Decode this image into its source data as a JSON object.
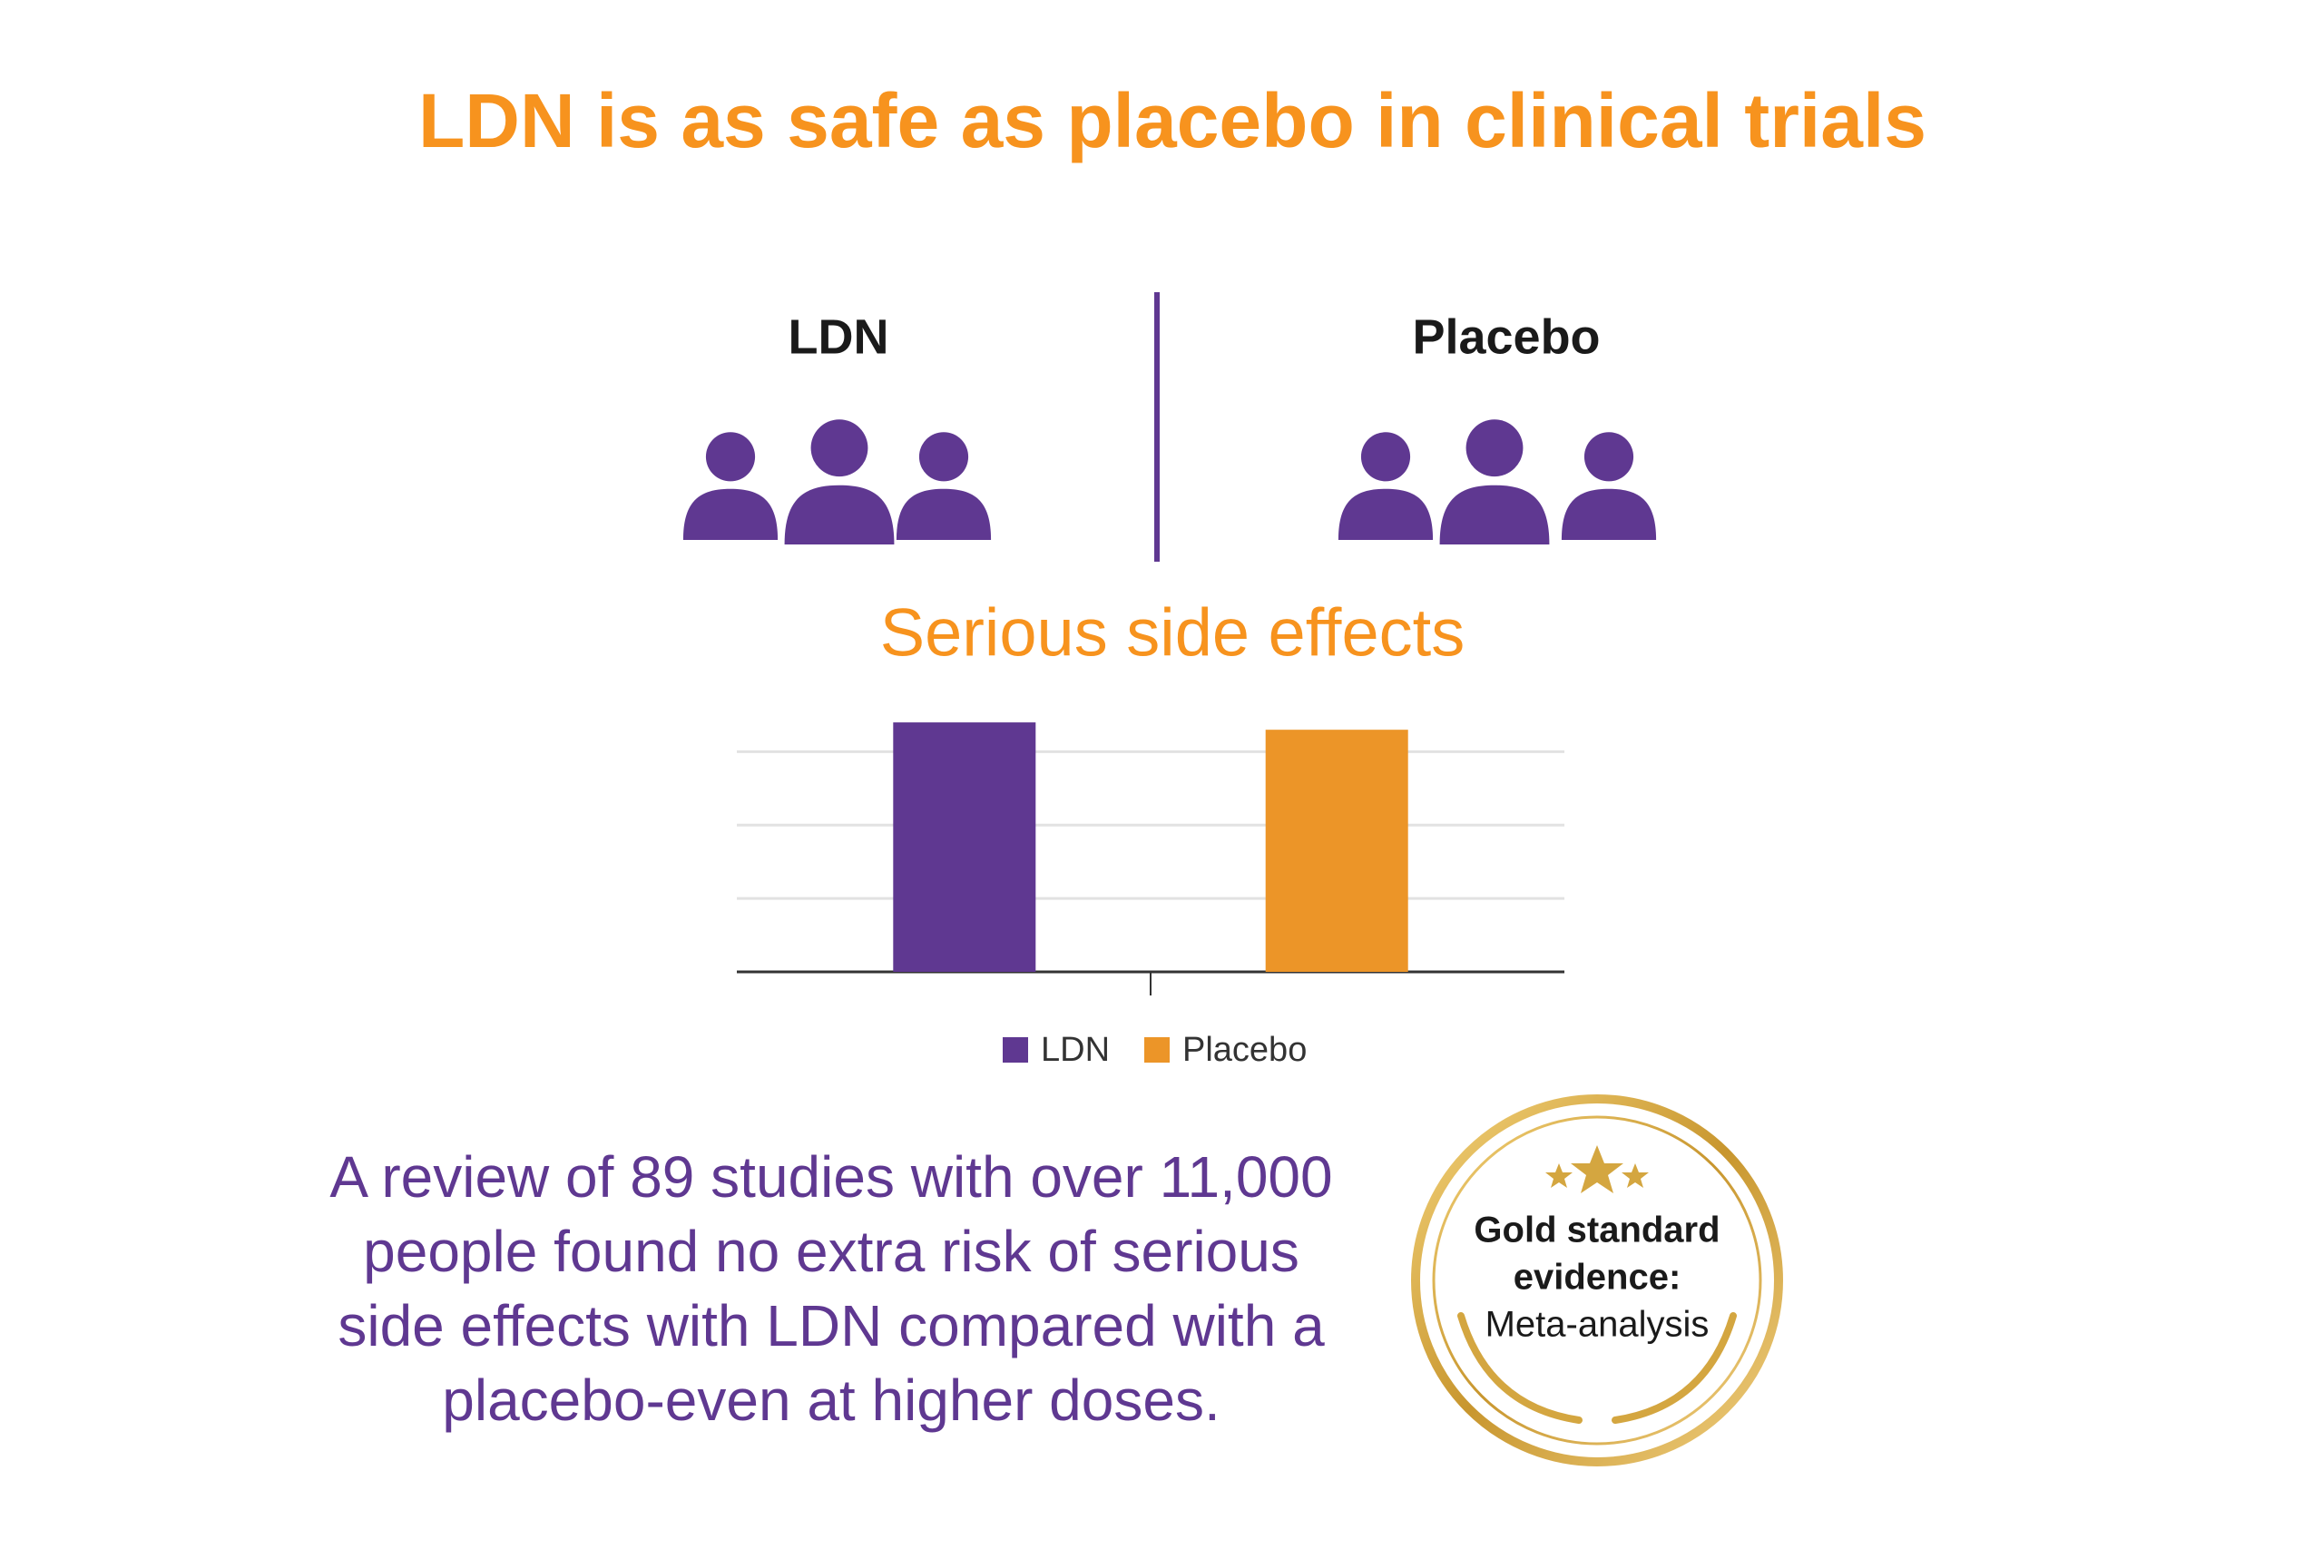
{
  "title": "LDN is as safe as placebo in clinical trials",
  "groups": [
    "LDN",
    "Placebo"
  ],
  "chart_data": {
    "type": "bar",
    "title": "Serious side effects",
    "categories": [
      null
    ],
    "series": [
      {
        "name": "LDN",
        "color": "#5f3891",
        "values": [
          3.4
        ]
      },
      {
        "name": "Placebo",
        "color": "#ec9528",
        "values": [
          3.3
        ]
      }
    ],
    "ylim": [
      0,
      3.5
    ],
    "yticks": [
      0,
      1,
      2,
      3
    ],
    "grid": true,
    "legend": "bottom"
  },
  "caption": [
    "A review of 89 studies with over 11,000",
    "people found no extra risk of serious",
    "side effects with LDN compared with a",
    "placebo-even at higher doses."
  ],
  "badge": [
    "Gold standard",
    "evidence:",
    "Meta-analysis"
  ]
}
